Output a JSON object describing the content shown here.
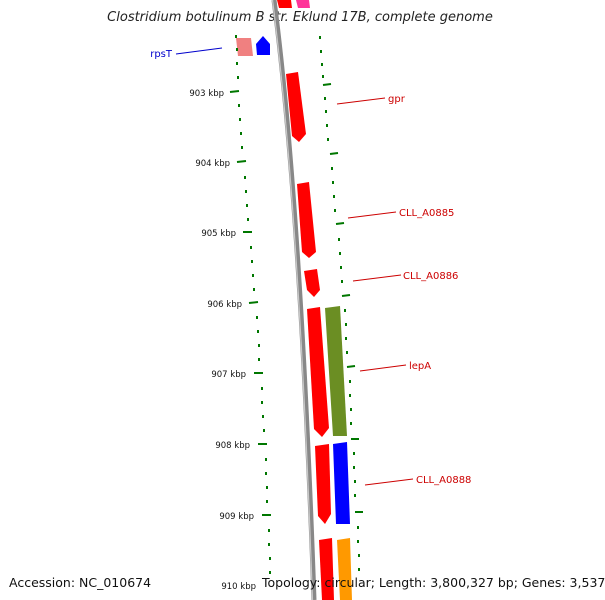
{
  "title": "Clostridium botulinum B str. Eklund 17B, complete genome",
  "footer": {
    "accession": "Accession: NC_010674",
    "summary": "Topology: circular; Length: 3,800,327 bp; Genes: 3,537"
  },
  "ticks": [
    "903 kbp",
    "904 kbp",
    "905 kbp",
    "906 kbp",
    "907 kbp",
    "908 kbp",
    "909 kbp",
    "910 kbp"
  ],
  "gene_labels": [
    {
      "text": "rpsT",
      "color": "#0000cc"
    },
    {
      "text": "gpr",
      "color": "#cc0000"
    },
    {
      "text": "CLL_A0885",
      "color": "#cc0000"
    },
    {
      "text": "CLL_A0886",
      "color": "#cc0000"
    },
    {
      "text": "lepA",
      "color": "#cc0000"
    },
    {
      "text": "CLL_A0888",
      "color": "#cc0000"
    }
  ],
  "colors": {
    "backbone": "#888888",
    "tick": "#007700",
    "gene_red": "#ff0000",
    "gene_pink": "#f08080",
    "gene_blue": "#0000ff",
    "gene_olive": "#6b8e23",
    "gene_orange": "#ff9900",
    "gene_magenta": "#ff3399"
  }
}
